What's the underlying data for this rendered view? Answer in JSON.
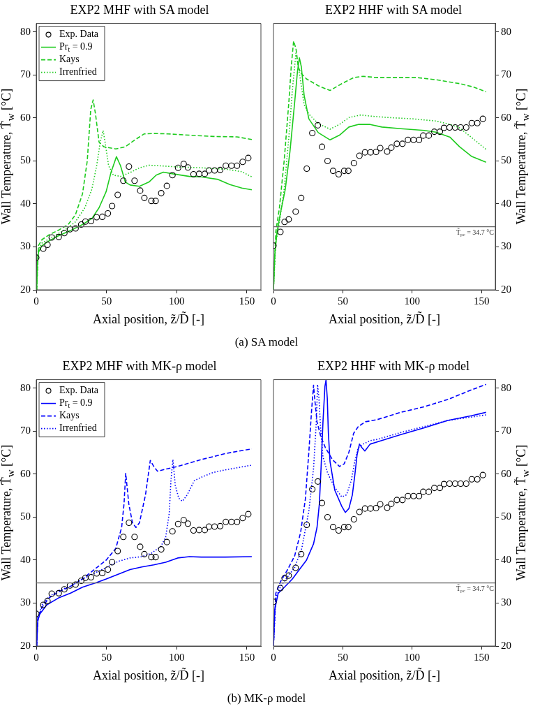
{
  "chart_data": [
    {
      "type": "line",
      "title": "EXP2 MHF with SA model",
      "xlabel": "Axial position, z̃/D̃ [-]",
      "ylabel": "Wall Temperature, T̃$_{w}$ [°C]",
      "xlim": [
        0,
        160
      ],
      "xticks": [
        0,
        50,
        100,
        150
      ],
      "ylim": [
        20,
        82
      ],
      "yticks": [
        20,
        30,
        40,
        50,
        60,
        70,
        80
      ],
      "grid": false,
      "legend": "top left",
      "annotations": [
        "(a)  SA model"
      ],
      "ref_lines": [
        {
          "axis": "y",
          "value": 34.7,
          "label": null,
          "color": "#666666"
        }
      ],
      "series": [
        {
          "name": "Exp. Data",
          "type": "scatter",
          "marker": "circle",
          "color": "#000000",
          "x": [
            0,
            5,
            8,
            11,
            16,
            20,
            24,
            28,
            32,
            35,
            39,
            43,
            47,
            51,
            54,
            58,
            62,
            66,
            70,
            74,
            77,
            82,
            85,
            89,
            93,
            97,
            101,
            105,
            108,
            112,
            116,
            120,
            123,
            127,
            131,
            135,
            139,
            143,
            147,
            151
          ],
          "values": [
            27.5,
            29.6,
            30.5,
            32.2,
            32.3,
            33.2,
            34.1,
            34.3,
            35.2,
            35.9,
            36.0,
            36.9,
            37.0,
            37.8,
            39.5,
            42.1,
            45.4,
            48.7,
            45.4,
            43.1,
            41.4,
            40.7,
            40.7,
            42.5,
            44.2,
            46.7,
            48.4,
            49.3,
            48.5,
            46.9,
            47.0,
            47.0,
            47.8,
            47.8,
            47.9,
            48.9,
            48.9,
            48.9,
            49.8,
            50.7
          ]
        },
        {
          "name": "Pr$_{t}$ = 0.9",
          "type": "line",
          "line_style": "solid",
          "marker": "none",
          "color": "#1ecb1e",
          "x": [
            0.3,
            0.7,
            1.5,
            4.1,
            9.1,
            15.9,
            24.4,
            32.9,
            39.6,
            44.7,
            49.8,
            53.2,
            57.1,
            60,
            63.4,
            66.8,
            73.5,
            80.3,
            85.4,
            90.5,
            97.3,
            109.1,
            117.6,
            129.5,
            137.9,
            146.4,
            153.5
          ],
          "values": [
            20,
            25.4,
            28.7,
            30.3,
            31.4,
            32.6,
            33.8,
            35.2,
            36.6,
            39.1,
            42.9,
            47.3,
            51,
            48.9,
            45.1,
            44.4,
            44.1,
            45.1,
            46.7,
            47.4,
            47,
            46.4,
            46.3,
            45.7,
            44.5,
            43.7,
            43.3
          ]
        },
        {
          "name": "Kays",
          "type": "line",
          "line_style": "dashed",
          "marker": "none",
          "color": "#1ecb1e",
          "x": [
            0.3,
            1.5,
            4.1,
            9.1,
            15.9,
            22.7,
            27.8,
            32.9,
            36.3,
            38.8,
            40.5,
            42.2,
            44.7,
            48.1,
            56.6,
            63.4,
            70.2,
            76.9,
            83.7,
            93.9,
            109.1,
            126.1,
            143,
            153.5
          ],
          "values": [
            20,
            30.3,
            31.7,
            32.8,
            33.9,
            35.2,
            37.4,
            42.3,
            50,
            62,
            64.2,
            60.9,
            54.4,
            53.3,
            52.8,
            53.3,
            54.9,
            56.3,
            56.4,
            56.3,
            56,
            55.7,
            55.6,
            55
          ]
        },
        {
          "name": "Irrenfried",
          "type": "line",
          "line_style": "dotted",
          "marker": "none",
          "color": "#1ecb1e",
          "x": [
            0.3,
            1.5,
            4.1,
            12.5,
            21,
            27.8,
            34.6,
            39.6,
            43,
            45.6,
            47.6,
            49,
            51.5,
            54.9,
            60,
            66.8,
            73.5,
            80.3,
            87.1,
            100.7,
            117.6,
            134.6,
            146.4,
            153.5
          ],
          "values": [
            20,
            29.5,
            30.9,
            32.5,
            34.1,
            35.8,
            39.1,
            43.4,
            48.9,
            54.4,
            57.1,
            54.4,
            48.9,
            46.7,
            46.4,
            47.3,
            48.4,
            49,
            48.9,
            48.6,
            48.4,
            48.1,
            47.5,
            46.3
          ]
        }
      ]
    },
    {
      "type": "line",
      "title": "EXP2 HHF with SA model",
      "xlabel": "Axial position, z̃/D̃ [-]",
      "y2label": "Wall Temperature, T̃$_{w}$ [°C]",
      "xlim": [
        0,
        160
      ],
      "xticks": [
        0,
        50,
        100,
        150
      ],
      "y2lim": [
        20,
        82
      ],
      "y2ticks": [
        20,
        30,
        40,
        50,
        60,
        70,
        80
      ],
      "grid": false,
      "ref_lines": [
        {
          "axis": "y2",
          "value": 34.7,
          "label": "T̃$_{pc}$ = 34.7 °C",
          "color": "#666666"
        }
      ],
      "series": [
        {
          "type": "scatter",
          "axis": "y2",
          "marker": "circle",
          "color": "#000000",
          "x": [
            0,
            5,
            8,
            11,
            16,
            20,
            24,
            28,
            32,
            35,
            39,
            43,
            47,
            51,
            54,
            58,
            62,
            66,
            70,
            74,
            77,
            82,
            85,
            89,
            93,
            97,
            101,
            105,
            108,
            112,
            116,
            120,
            123,
            127,
            131,
            135,
            139,
            143,
            147,
            151
          ],
          "values": [
            30.3,
            33.5,
            35.8,
            36.4,
            38.2,
            41.4,
            48.2,
            56.5,
            58.3,
            53.3,
            50.0,
            47.7,
            46.9,
            47.7,
            47.7,
            49.5,
            51.2,
            52.0,
            52.0,
            52.1,
            53.0,
            52.2,
            53.1,
            54.0,
            54.0,
            54.9,
            54.9,
            54.9,
            55.9,
            55.9,
            56.8,
            56.8,
            57.7,
            57.8,
            57.8,
            57.8,
            57.8,
            58.8,
            58.8,
            59.8
          ]
        },
        {
          "type": "line",
          "axis": "y2",
          "line_style": "solid",
          "marker": "none",
          "color": "#1ecb1e",
          "x": [
            0,
            0.9,
            2.6,
            5.1,
            8.5,
            11.9,
            15.3,
            17.3,
            18.7,
            20.1,
            22.1,
            25.5,
            32.3,
            40.8,
            47.6,
            54.4,
            61.2,
            69.7,
            78.2,
            91.8,
            108.8,
            117.2,
            127.4,
            134.2,
            142.7,
            153.3
          ],
          "values": [
            20,
            28.1,
            33.6,
            38,
            43.4,
            52.2,
            63.7,
            70.8,
            74,
            71.9,
            65.3,
            59.8,
            56.6,
            54.9,
            56,
            57.9,
            58.5,
            58.5,
            57.9,
            57.5,
            57.1,
            56.7,
            55.5,
            53.3,
            51.1,
            49.7
          ]
        },
        {
          "type": "line",
          "axis": "y2",
          "line_style": "dashed",
          "marker": "none",
          "color": "#1ecb1e",
          "x": [
            0,
            1.7,
            4.3,
            7.7,
            11.1,
            12.8,
            14.5,
            16.2,
            17.9,
            19.6,
            23.8,
            32.3,
            40.8,
            49.3,
            57.8,
            64.6,
            74.8,
            91.8,
            103.7,
            117.2,
            134.2,
            144.4,
            153.3
          ],
          "values": [
            20,
            33.6,
            39.1,
            50,
            63.7,
            71.9,
            77.9,
            76.2,
            71.9,
            70.5,
            69.1,
            67.5,
            66.4,
            68,
            69.4,
            69.7,
            69.4,
            69.4,
            69.4,
            68.9,
            68,
            67.2,
            66.1
          ]
        },
        {
          "type": "line",
          "axis": "y2",
          "line_style": "dotted",
          "marker": "none",
          "color": "#1ecb1e",
          "x": [
            0,
            1.7,
            4.3,
            7.7,
            11.1,
            13.6,
            16.2,
            17.9,
            19.6,
            22.1,
            25.5,
            32.3,
            40.8,
            47.6,
            54.4,
            62.9,
            71.4,
            83.3,
            100.3,
            117.2,
            127.4,
            134.2,
            142.7,
            153.3
          ],
          "values": [
            20,
            30.9,
            35.8,
            43.4,
            55.5,
            66.4,
            75.1,
            71.9,
            68.6,
            63.1,
            60.9,
            58.7,
            57.4,
            58.5,
            60.1,
            60.7,
            60.4,
            60.1,
            59.8,
            59.3,
            58.5,
            57.7,
            55.5,
            52.7
          ]
        }
      ]
    },
    {
      "type": "line",
      "title": "EXP2 MHF with MK-ρ model",
      "xlabel": "Axial position, z̃/D̃ [-]",
      "ylabel": "Wall Temperature, T̃$_{w}$ [°C]",
      "xlim": [
        0,
        160
      ],
      "xticks": [
        0,
        50,
        100,
        150
      ],
      "ylim": [
        20,
        82
      ],
      "yticks": [
        20,
        30,
        40,
        50,
        60,
        70,
        80
      ],
      "grid": false,
      "legend": "top left",
      "annotations": [
        "(b)  MK-ρ model"
      ],
      "ref_lines": [
        {
          "axis": "y",
          "value": 34.7,
          "label": null,
          "color": "#666666"
        }
      ],
      "series": [
        {
          "name": "Exp. Data",
          "type": "scatter",
          "marker": "circle",
          "color": "#000000",
          "x": [
            0,
            5,
            8,
            11,
            16,
            20,
            24,
            28,
            32,
            35,
            39,
            43,
            47,
            51,
            54,
            58,
            62,
            66,
            70,
            74,
            77,
            82,
            85,
            89,
            93,
            97,
            101,
            105,
            108,
            112,
            116,
            120,
            123,
            127,
            131,
            135,
            139,
            143,
            147,
            151
          ],
          "values": [
            27.5,
            29.6,
            30.5,
            32.2,
            32.3,
            33.2,
            34.1,
            34.3,
            35.2,
            35.9,
            36.0,
            36.9,
            37.0,
            37.8,
            39.5,
            42.1,
            45.4,
            48.7,
            45.4,
            43.1,
            41.4,
            40.7,
            40.7,
            42.5,
            44.2,
            46.7,
            48.4,
            49.3,
            48.5,
            46.9,
            47.0,
            47.0,
            47.8,
            47.8,
            47.9,
            48.9,
            48.9,
            48.9,
            49.8,
            50.7
          ]
        },
        {
          "name": "Pr$_{t}$ = 0.9",
          "type": "line",
          "line_style": "solid",
          "marker": "none",
          "color": "#0000ff",
          "x": [
            0.3,
            1,
            2.4,
            7.5,
            15.9,
            24.4,
            32.9,
            43,
            49.8,
            58.3,
            66.8,
            75.2,
            83.7,
            92.2,
            100.7,
            109.1,
            117.6,
            134.6,
            153.5
          ],
          "values": [
            20,
            25.7,
            27.4,
            29.6,
            31.2,
            32.3,
            33.7,
            34.8,
            35.6,
            36.7,
            37.8,
            38.4,
            38.9,
            39.5,
            40.5,
            40.8,
            40.7,
            40.7,
            40.8
          ]
        },
        {
          "name": "Kays",
          "type": "line",
          "line_style": "dashed",
          "marker": "none",
          "color": "#0000ff",
          "x": [
            0.3,
            1,
            4.1,
            9.1,
            15.9,
            24.4,
            32.9,
            41.3,
            49.8,
            56.6,
            60.8,
            62.5,
            63.7,
            65.9,
            68.5,
            71,
            73.5,
            77.8,
            81.2,
            83.7,
            86.3,
            93.9,
            100.7,
            117.6,
            134.6,
            153.5
          ],
          "values": [
            20,
            26.3,
            29,
            31.2,
            32.6,
            33.9,
            35.6,
            37.8,
            40,
            42.7,
            47.6,
            53.1,
            60.2,
            53.1,
            48.7,
            47.6,
            48.7,
            55.2,
            63.2,
            61.8,
            60.7,
            61.3,
            61.8,
            63.4,
            64.8,
            65.9
          ]
        },
        {
          "name": "Irrenfried",
          "type": "line",
          "line_style": "dotted",
          "marker": "none",
          "color": "#0000ff",
          "x": [
            0.3,
            1,
            4.1,
            9.1,
            15.9,
            24.4,
            32.9,
            43,
            49.8,
            58.3,
            66.8,
            75.2,
            82,
            88.8,
            92.2,
            94.7,
            95.9,
            97.3,
            99,
            101.5,
            104.1,
            107.5,
            112.6,
            117.6,
            126.1,
            134.6,
            153.5
          ],
          "values": [
            20,
            26.6,
            29.6,
            31.5,
            32.9,
            33.9,
            35.6,
            37.2,
            38.3,
            39.7,
            40.5,
            40.8,
            41.6,
            43.2,
            45.4,
            50.9,
            58.5,
            63.4,
            57.4,
            54.4,
            53.7,
            55.2,
            58.5,
            59.3,
            60.4,
            61,
            62.1
          ]
        }
      ]
    },
    {
      "type": "line",
      "title": "EXP2 HHF with MK-ρ model",
      "xlabel": "Axial position, z̃/D̃ [-]",
      "y2label": "Wall Temperature, T̃$_{w}$ [°C]",
      "xlim": [
        0,
        160
      ],
      "xticks": [
        0,
        50,
        100,
        150
      ],
      "y2lim": [
        20,
        82
      ],
      "y2ticks": [
        20,
        30,
        40,
        50,
        60,
        70,
        80
      ],
      "grid": false,
      "ref_lines": [
        {
          "axis": "y2",
          "value": 34.7,
          "label": "T̃$_{pc}$ = 34.7 °C",
          "color": "#666666"
        }
      ],
      "series": [
        {
          "type": "scatter",
          "axis": "y2",
          "marker": "circle",
          "color": "#000000",
          "x": [
            0,
            5,
            8,
            11,
            16,
            20,
            24,
            28,
            32,
            35,
            39,
            43,
            47,
            51,
            54,
            58,
            62,
            66,
            70,
            74,
            77,
            82,
            85,
            89,
            93,
            97,
            101,
            105,
            108,
            112,
            116,
            120,
            123,
            127,
            131,
            135,
            139,
            143,
            147,
            151
          ],
          "values": [
            30.3,
            33.5,
            35.8,
            36.4,
            38.2,
            41.4,
            48.2,
            56.5,
            58.3,
            53.3,
            50.0,
            47.7,
            46.9,
            47.7,
            47.7,
            49.5,
            51.2,
            52.0,
            52.0,
            52.1,
            53.0,
            52.2,
            53.1,
            54.0,
            54.0,
            54.9,
            54.9,
            54.9,
            55.9,
            55.9,
            56.8,
            56.8,
            57.7,
            57.8,
            57.8,
            57.8,
            57.8,
            58.8,
            58.8,
            59.8
          ]
        },
        {
          "type": "line",
          "axis": "y2",
          "line_style": "solid",
          "marker": "none",
          "color": "#0000ff",
          "x": [
            0,
            0.9,
            3.4,
            8.5,
            13.6,
            18.7,
            23.8,
            28.9,
            31.4,
            33.1,
            34.3,
            35.7,
            37.1,
            37.9,
            38.8,
            39.6,
            40.8,
            44.2,
            49.3,
            51.8,
            54.4,
            56.9,
            58.6,
            60.3,
            62,
            63.7,
            65.9,
            69.7,
            74.8,
            91.8,
            108.8,
            125.7,
            142.7,
            153.3
          ],
          "values": [
            20,
            28.5,
            32.3,
            33.9,
            35.6,
            37.8,
            40,
            43.8,
            47.6,
            53.1,
            61.3,
            72.2,
            80.4,
            81.9,
            77.7,
            69.5,
            62.9,
            56.3,
            52.5,
            51.1,
            52,
            55.2,
            59.6,
            64.5,
            67,
            66.2,
            65.4,
            67,
            67.5,
            69.2,
            70.8,
            72.5,
            73.6,
            74.4
          ]
        },
        {
          "type": "line",
          "axis": "y2",
          "line_style": "dashed",
          "marker": "none",
          "color": "#0000ff",
          "x": [
            0,
            1.7,
            5.1,
            10.2,
            15.3,
            19.6,
            23,
            25.5,
            27.5,
            28.9,
            29.7,
            31.4,
            34,
            37.4,
            42.5,
            47.6,
            51,
            54.4,
            57.8,
            61.2,
            66.3,
            74.8,
            91.8,
            108.8,
            125.7,
            142.7,
            153.3
          ],
          "values": [
            20,
            32.3,
            35,
            37.8,
            41,
            46.5,
            54.2,
            65.1,
            74.9,
            80.7,
            77.7,
            72.2,
            68.9,
            66.2,
            63.4,
            61.8,
            62.4,
            65.1,
            69.5,
            71.1,
            72.2,
            72.7,
            74.4,
            75.7,
            77.4,
            79.6,
            80.9
          ]
        },
        {
          "type": "line",
          "axis": "y2",
          "line_style": "dotted",
          "marker": "none",
          "color": "#0000ff",
          "x": [
            0,
            1.7,
            5.1,
            10.2,
            15.3,
            20.4,
            25.5,
            28.9,
            30.9,
            31.8,
            32.8,
            34,
            35.7,
            39.1,
            44.2,
            49.3,
            52.7,
            56.1,
            58.6,
            61.2,
            64.6,
            69.7,
            74.8,
            91.8,
            108.8,
            125.7,
            142.7,
            153.3
          ],
          "values": [
            20,
            31.2,
            33.9,
            36.1,
            38.3,
            42.7,
            51.4,
            61.3,
            72.2,
            80.9,
            77.7,
            70.6,
            64,
            60.2,
            56.9,
            54.7,
            55.2,
            58.5,
            62.9,
            66.2,
            67,
            67.8,
            68.1,
            69.7,
            71.1,
            72.5,
            73.3,
            73.8
          ]
        }
      ]
    }
  ]
}
